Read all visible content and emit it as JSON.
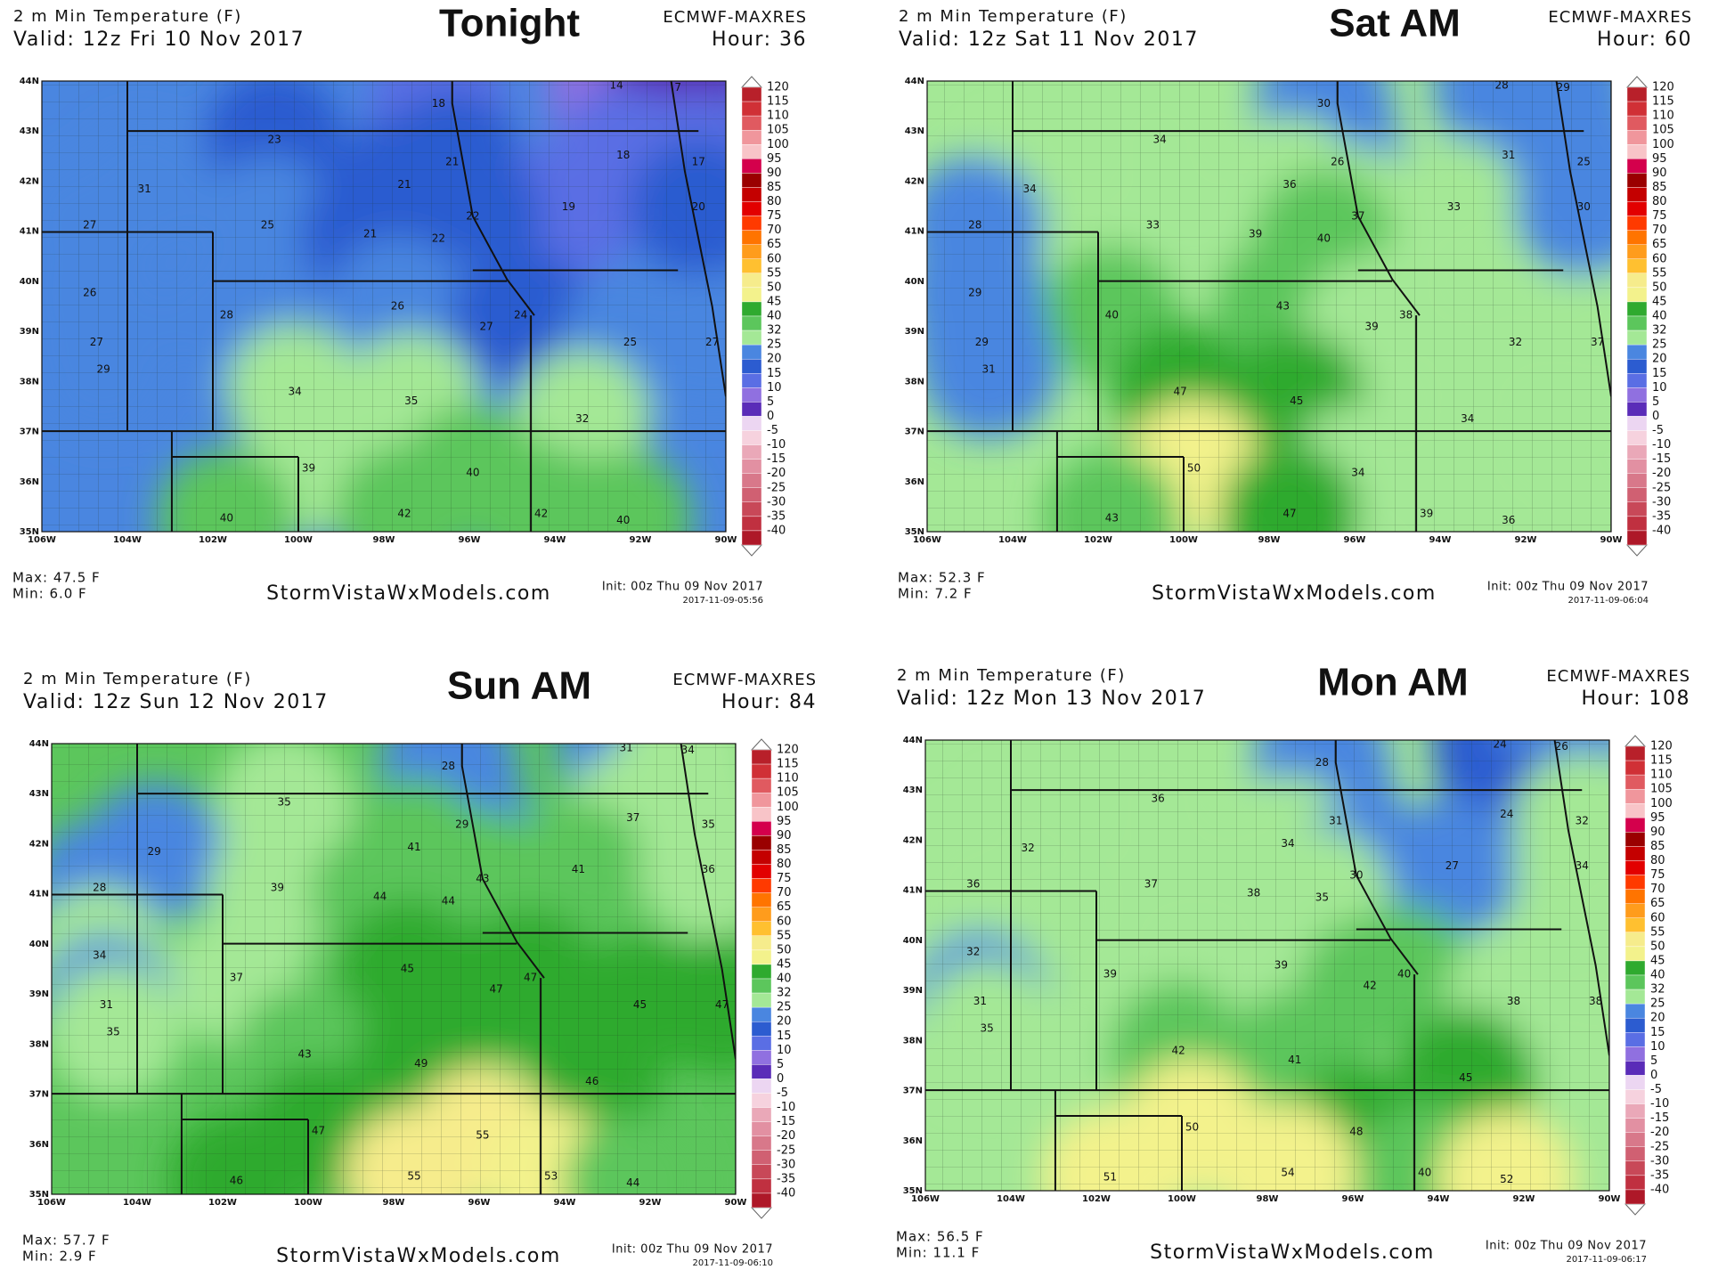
{
  "colorbar": {
    "levels": [
      120,
      115,
      110,
      105,
      100,
      95,
      90,
      85,
      80,
      75,
      70,
      65,
      60,
      55,
      50,
      45,
      40,
      32,
      25,
      20,
      15,
      10,
      5,
      0,
      -5,
      -10,
      -15,
      -20,
      -25,
      -30,
      -35,
      -40
    ],
    "colors": [
      "#b8202a",
      "#d03036",
      "#e05a60",
      "#f0969c",
      "#f8c4c8",
      "#d4004c",
      "#9a0000",
      "#c40000",
      "#e20000",
      "#ff3a00",
      "#ff7400",
      "#ff9c1c",
      "#ffc030",
      "#f6ec8c",
      "#f3f28c",
      "#2faa2f",
      "#5cc65c",
      "#a4e896",
      "#4a86e0",
      "#2c5cd0",
      "#5a6ee4",
      "#9070e0",
      "#5a2cb8",
      "#ecd6f2",
      "#f6d2de",
      "#eaa8b8",
      "#e290a2",
      "#d8788a",
      "#d06072",
      "#c84858",
      "#c03040",
      "#ae1828"
    ]
  },
  "lat_labels": [
    "44N",
    "43N",
    "42N",
    "41N",
    "40N",
    "39N",
    "38N",
    "37N",
    "36N",
    "35N"
  ],
  "lon_labels": [
    "106W",
    "104W",
    "102W",
    "100W",
    "98W",
    "96W",
    "94W",
    "92W",
    "90W"
  ],
  "panels": [
    {
      "title": "2 m Min Temperature (F)",
      "valid": "Valid: 12z Fri 10 Nov 2017",
      "heading": "Tonight",
      "model": "ECMWF-MAXRES",
      "hour": "Hour: 36",
      "max": "Max: 47.5 F",
      "min": "Min: 6.0 F",
      "site": "StormVistaWxModels.com",
      "init": "Init: 00z Thu 09 Nov 2017",
      "stamp": "2017-11-09-05:56",
      "station_values": [
        14,
        7,
        18,
        23,
        18,
        17,
        21,
        31,
        21,
        19,
        20,
        27,
        25,
        21,
        22,
        22,
        26,
        26,
        28,
        27,
        24,
        27,
        25,
        27,
        29,
        34,
        35,
        32,
        39,
        40,
        40,
        42,
        42,
        40
      ]
    },
    {
      "title": "2 m Min Temperature (F)",
      "valid": "Valid: 12z Sat 11 Nov 2017",
      "heading": "Sat AM",
      "model": "ECMWF-MAXRES",
      "hour": "Hour: 60",
      "max": "Max: 52.3 F",
      "min": "Min: 7.2 F",
      "site": "StormVistaWxModels.com",
      "init": "Init: 00z Thu 09 Nov 2017",
      "stamp": "2017-11-09-06:04",
      "station_values": [
        28,
        29,
        30,
        34,
        31,
        25,
        26,
        34,
        36,
        33,
        30,
        28,
        33,
        39,
        37,
        40,
        29,
        43,
        40,
        39,
        38,
        29,
        32,
        37,
        31,
        47,
        45,
        34,
        50,
        34,
        43,
        47,
        39,
        36
      ]
    },
    {
      "title": "2 m Min Temperature (F)",
      "valid": "Valid: 12z Sun 12 Nov 2017",
      "heading": "Sun AM",
      "model": "ECMWF-MAXRES",
      "hour": "Hour: 84",
      "max": "Max: 57.7 F",
      "min": "Min: 2.9 F",
      "site": "StormVistaWxModels.com",
      "init": "Init: 00z Thu 09 Nov 2017",
      "stamp": "2017-11-09-06:10",
      "station_values": [
        31,
        34,
        28,
        35,
        37,
        35,
        29,
        29,
        41,
        41,
        36,
        28,
        39,
        44,
        43,
        44,
        34,
        45,
        37,
        47,
        47,
        31,
        45,
        47,
        35,
        43,
        49,
        46,
        47,
        55,
        46,
        55,
        53,
        44
      ]
    },
    {
      "title": "2 m Min Temperature (F)",
      "valid": "Valid: 12z Mon 13 Nov 2017",
      "heading": "Mon AM",
      "model": "ECMWF-MAXRES",
      "hour": "Hour: 108",
      "max": "Max: 56.5 F",
      "min": "Min: 11.1 F",
      "site": "StormVistaWxModels.com",
      "init": "Init: 00z Thu 09 Nov 2017",
      "stamp": "2017-11-09-06:17",
      "station_values": [
        24,
        26,
        28,
        36,
        24,
        32,
        31,
        32,
        34,
        27,
        34,
        36,
        37,
        38,
        30,
        35,
        32,
        39,
        39,
        42,
        40,
        31,
        38,
        38,
        35,
        42,
        41,
        45,
        50,
        48,
        51,
        54,
        40,
        52
      ]
    }
  ]
}
